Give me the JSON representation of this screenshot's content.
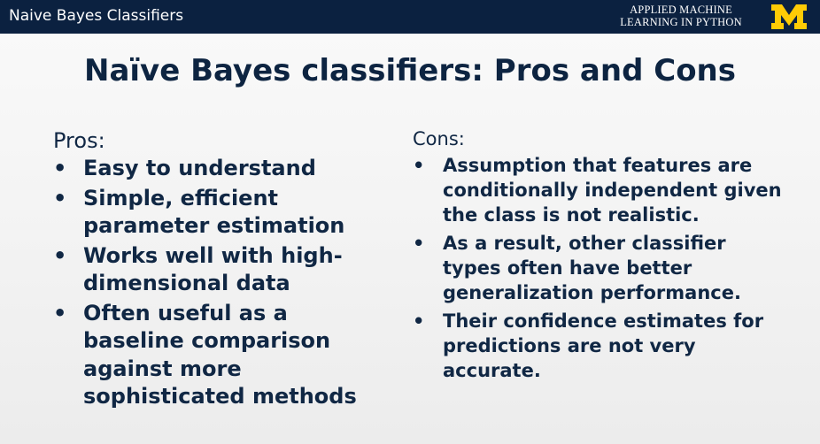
{
  "header": {
    "title": "Naive Bayes Classifiers",
    "course_line1": "APPLIED MACHINE",
    "course_line2": "LEARNING IN PYTHON",
    "logo_letter": "M",
    "logo_color": "#ffcb05",
    "bar_color": "#0b2140"
  },
  "slide": {
    "title": "Naïve Bayes classifiers: Pros and Cons",
    "pros": {
      "heading": "Pros:",
      "items": [
        "Easy to understand",
        "Simple, efficient parameter estimation",
        "Works well with high-dimensional data",
        "Often useful as a baseline comparison against more sophisticated methods"
      ]
    },
    "cons": {
      "heading": "Cons:",
      "items": [
        "Assumption that features are conditionally independent given the class is not realistic.",
        "As a result, other classifier types often have better generalization performance.",
        "Their confidence estimates for predictions are not very accurate."
      ]
    },
    "text_color": "#102744"
  }
}
